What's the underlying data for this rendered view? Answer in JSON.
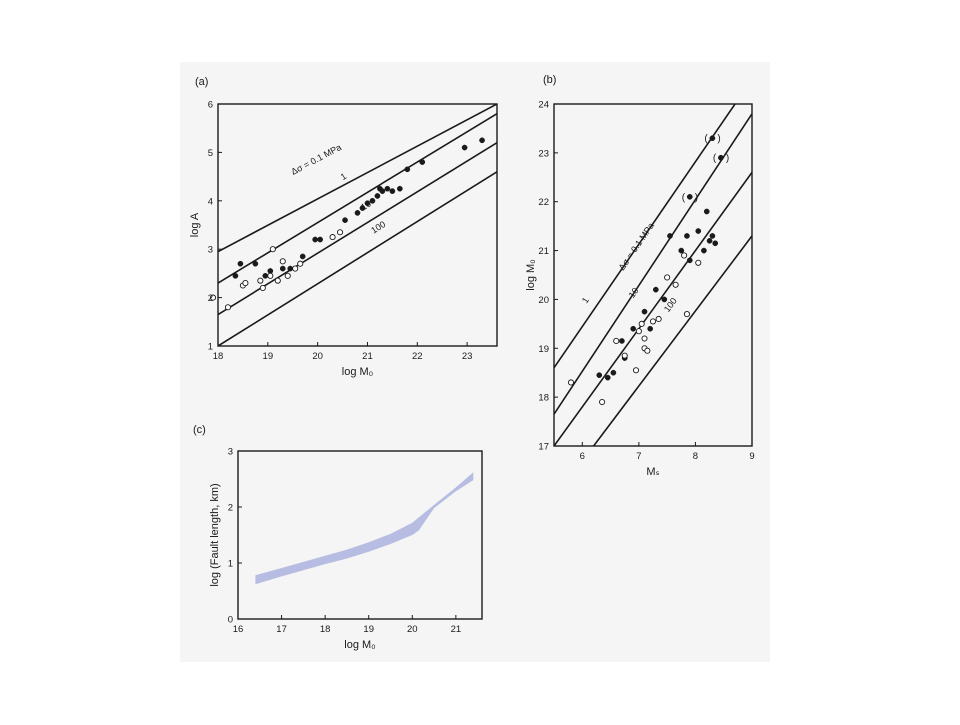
{
  "colors": {
    "background": "#ffffff",
    "panel_background": "#f5f5f5",
    "ink": "#1a1a1a",
    "band_fill": "#b7bde2",
    "open_marker_fill": "#ffffff"
  },
  "chart_data": [
    {
      "panel_label": "(a)",
      "type": "scatter",
      "title": "",
      "xlabel": "log M₀",
      "ylabel": "log A",
      "xlim": [
        18,
        23.6
      ],
      "ylim": [
        1,
        6
      ],
      "xticks": [
        "18",
        "19",
        "20",
        "21",
        "22",
        "23"
      ],
      "yticks": [
        "1",
        "2",
        "3",
        "4",
        "5",
        "6"
      ],
      "grid": false,
      "reference_lines": [
        {
          "label": "Δσ = 0.1 MPa",
          "x": [
            18,
            23.6
          ],
          "y": [
            2.95,
            6.0
          ]
        },
        {
          "label": "1",
          "x": [
            18,
            23.6
          ],
          "y": [
            2.3,
            5.8
          ]
        },
        {
          "label": "10",
          "x": [
            18,
            23.6
          ],
          "y": [
            1.65,
            5.2
          ]
        },
        {
          "label": "100",
          "x": [
            18,
            23.6
          ],
          "y": [
            1.0,
            4.6
          ]
        }
      ],
      "series": [
        {
          "marker": "filled",
          "x": [
            18.35,
            18.45,
            18.75,
            18.95,
            19.05,
            19.3,
            19.45,
            19.7,
            19.95,
            20.05,
            20.55,
            20.8,
            20.9,
            21.0,
            21.1,
            21.2,
            21.25,
            21.3,
            21.4,
            21.5,
            21.65,
            21.8,
            22.1,
            22.95,
            23.3
          ],
          "y": [
            2.45,
            2.7,
            2.7,
            2.45,
            2.55,
            2.6,
            2.6,
            2.85,
            3.2,
            3.2,
            3.6,
            3.75,
            3.85,
            3.95,
            4.0,
            4.1,
            4.25,
            4.2,
            4.25,
            4.2,
            4.25,
            4.65,
            4.8,
            5.1,
            5.25
          ]
        },
        {
          "marker": "open",
          "x": [
            17.9,
            18.2,
            18.5,
            18.55,
            18.85,
            18.9,
            19.05,
            19.1,
            19.2,
            19.3,
            19.4,
            19.55,
            19.65,
            20.3,
            20.45
          ],
          "y": [
            2.0,
            1.8,
            2.25,
            2.3,
            2.35,
            2.2,
            2.45,
            3.0,
            2.35,
            2.75,
            2.45,
            2.6,
            2.7,
            3.25,
            3.35
          ]
        }
      ]
    },
    {
      "panel_label": "(b)",
      "type": "scatter",
      "title": "",
      "xlabel": "Mₛ",
      "ylabel": "log M₀",
      "xlim": [
        5.5,
        9
      ],
      "ylim": [
        17,
        24
      ],
      "xticks": [
        "6",
        "7",
        "8",
        "9"
      ],
      "yticks": [
        "17",
        "18",
        "19",
        "20",
        "21",
        "22",
        "23",
        "24"
      ],
      "grid": false,
      "reference_lines": [
        {
          "label": "Δσ = 0.1 MPa",
          "x": [
            5.5,
            8.7
          ],
          "y": [
            18.6,
            24.0
          ]
        },
        {
          "label": "1",
          "x": [
            5.5,
            9.0
          ],
          "y": [
            17.65,
            23.8
          ]
        },
        {
          "label": "10",
          "x": [
            5.5,
            9.0
          ],
          "y": [
            17.0,
            22.6
          ]
        },
        {
          "label": "100",
          "x": [
            6.2,
            9.0
          ],
          "y": [
            17.0,
            21.3
          ]
        }
      ],
      "series": [
        {
          "marker": "filled",
          "x": [
            6.3,
            6.45,
            6.55,
            6.7,
            6.75,
            6.9,
            7.1,
            7.2,
            7.3,
            7.45,
            7.55,
            7.75,
            7.85,
            7.9,
            8.05,
            8.15,
            8.2,
            8.25,
            8.3,
            8.35
          ],
          "y": [
            18.45,
            18.4,
            18.5,
            19.15,
            18.8,
            19.4,
            19.75,
            19.4,
            20.2,
            20.0,
            21.3,
            21.0,
            21.3,
            20.8,
            21.4,
            21.0,
            21.8,
            21.2,
            21.3,
            21.15
          ]
        },
        {
          "marker": "open",
          "x": [
            5.8,
            6.35,
            6.6,
            6.75,
            6.95,
            7.0,
            7.05,
            7.1,
            7.1,
            7.15,
            7.25,
            7.35,
            7.5,
            7.65,
            7.8,
            7.85,
            8.05
          ],
          "y": [
            18.3,
            17.9,
            19.15,
            18.85,
            18.55,
            19.35,
            19.5,
            19.0,
            19.2,
            18.95,
            19.55,
            19.6,
            20.45,
            20.3,
            20.9,
            19.7,
            20.75
          ]
        },
        {
          "marker": "filled-bracketed",
          "x": [
            7.9,
            8.3,
            8.45
          ],
          "y": [
            22.1,
            23.3,
            22.9
          ]
        }
      ]
    },
    {
      "panel_label": "(c)",
      "type": "area",
      "title": "",
      "xlabel": "log M₀",
      "ylabel": "log (Fault length,  km)",
      "xlim": [
        16,
        21.6
      ],
      "ylim": [
        0,
        3
      ],
      "xticks": [
        "16",
        "17",
        "18",
        "19",
        "20",
        "21"
      ],
      "yticks": [
        "0",
        "1",
        "2",
        "3"
      ],
      "grid": false,
      "band": {
        "x_upper": [
          16.4,
          17.0,
          17.5,
          18.0,
          18.5,
          19.0,
          19.5,
          20.0,
          20.25,
          20.6,
          21.0,
          21.4
        ],
        "upper": [
          0.78,
          0.91,
          1.02,
          1.13,
          1.24,
          1.37,
          1.52,
          1.72,
          1.88,
          2.1,
          2.35,
          2.62
        ],
        "x_lower": [
          16.4,
          17.0,
          17.5,
          18.0,
          18.5,
          19.0,
          19.5,
          20.0,
          20.15,
          20.5,
          21.0,
          21.4
        ],
        "lower": [
          0.62,
          0.76,
          0.87,
          0.98,
          1.08,
          1.2,
          1.34,
          1.5,
          1.58,
          1.98,
          2.28,
          2.48
        ]
      }
    }
  ]
}
